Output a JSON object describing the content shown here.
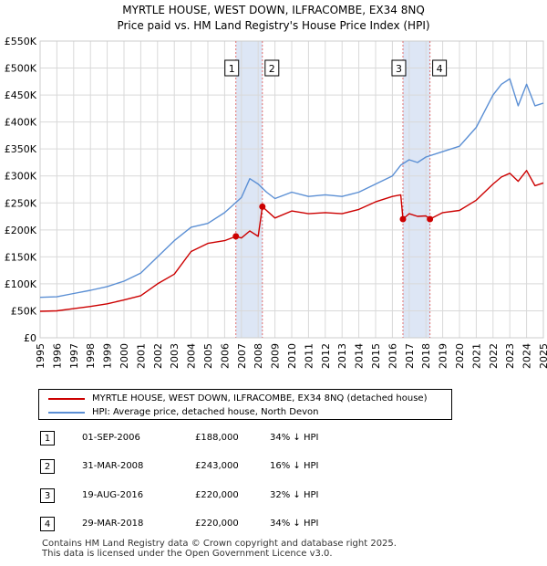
{
  "title_line1": "MYRTLE HOUSE, WEST DOWN, ILFRACOMBE, EX34 8NQ",
  "title_line2": "Price paid vs. HM Land Registry's House Price Index (HPI)",
  "colors": {
    "price_line": "#cc0000",
    "hpi_line": "#5b8fd4",
    "band_fill": "#dde6f5",
    "marker_dash": "#e07070",
    "grid": "#d9d9d9"
  },
  "legend": [
    {
      "label": "MYRTLE HOUSE, WEST DOWN, ILFRACOMBE, EX34 8NQ (detached house)",
      "color": "#cc0000"
    },
    {
      "label": "HPI: Average price, detached house, North Devon",
      "color": "#5b8fd4"
    }
  ],
  "sales": [
    {
      "num": "1",
      "date": "01-SEP-2006",
      "price": "£188,000",
      "hpi": "34% ↓ HPI"
    },
    {
      "num": "2",
      "date": "31-MAR-2008",
      "price": "£243,000",
      "hpi": "16% ↓ HPI"
    },
    {
      "num": "3",
      "date": "19-AUG-2016",
      "price": "£220,000",
      "hpi": "32% ↓ HPI"
    },
    {
      "num": "4",
      "date": "29-MAR-2018",
      "price": "£220,000",
      "hpi": "34% ↓ HPI"
    }
  ],
  "footer_line1": "Contains HM Land Registry data © Crown copyright and database right 2025.",
  "footer_line2": "This data is licensed under the Open Government Licence v3.0.",
  "chart_data": {
    "type": "line",
    "title": "MYRTLE HOUSE, WEST DOWN, ILFRACOMBE, EX34 8NQ — Price paid vs. HM Land Registry's House Price Index (HPI)",
    "xlim": [
      1995,
      2025
    ],
    "ylim": [
      0,
      550000
    ],
    "y_ticks": [
      0,
      50000,
      100000,
      150000,
      200000,
      250000,
      300000,
      350000,
      400000,
      450000,
      500000,
      550000
    ],
    "y_tick_labels": [
      "£0",
      "£50K",
      "£100K",
      "£150K",
      "£200K",
      "£250K",
      "£300K",
      "£350K",
      "£400K",
      "£450K",
      "£500K",
      "£550K"
    ],
    "x_ticks": [
      1995,
      1996,
      1997,
      1998,
      1999,
      2000,
      2001,
      2002,
      2003,
      2004,
      2005,
      2006,
      2007,
      2008,
      2009,
      2010,
      2011,
      2012,
      2013,
      2014,
      2015,
      2016,
      2017,
      2018,
      2019,
      2020,
      2021,
      2022,
      2023,
      2024,
      2025
    ],
    "grid": true,
    "shaded_periods": [
      [
        2006.67,
        2008.25
      ],
      [
        2016.63,
        2018.24
      ]
    ],
    "sale_markers": [
      {
        "label": "1",
        "x": 2006.67,
        "y": 188000
      },
      {
        "label": "2",
        "x": 2008.25,
        "y": 243000
      },
      {
        "label": "3",
        "x": 2016.63,
        "y": 220000
      },
      {
        "label": "4",
        "x": 2018.24,
        "y": 220000
      }
    ],
    "series": [
      {
        "name": "HPI: Average price, detached house, North Devon",
        "x": [
          1995,
          1996,
          1997,
          1998,
          1999,
          2000,
          2001,
          2002,
          2003,
          2004,
          2005,
          2006,
          2007,
          2007.5,
          2008,
          2008.5,
          2009,
          2010,
          2011,
          2012,
          2013,
          2014,
          2015,
          2016,
          2016.5,
          2017,
          2017.5,
          2018,
          2019,
          2020,
          2021,
          2022,
          2022.5,
          2023,
          2023.5,
          2024,
          2024.5,
          2025
        ],
        "values": [
          75000,
          76000,
          82000,
          88000,
          95000,
          105000,
          120000,
          150000,
          180000,
          205000,
          212000,
          232000,
          260000,
          295000,
          285000,
          270000,
          258000,
          270000,
          262000,
          265000,
          262000,
          270000,
          285000,
          300000,
          320000,
          330000,
          325000,
          335000,
          345000,
          355000,
          390000,
          450000,
          470000,
          480000,
          430000,
          470000,
          430000,
          435000
        ]
      },
      {
        "name": "MYRTLE HOUSE, WEST DOWN, ILFRACOMBE, EX34 8NQ (detached house)",
        "x": [
          1995,
          1996,
          1997,
          1998,
          1999,
          2000,
          2001,
          2002,
          2003,
          2004,
          2005,
          2006,
          2006.67,
          2007,
          2007.5,
          2008,
          2008.25,
          2009,
          2010,
          2011,
          2012,
          2013,
          2014,
          2015,
          2016,
          2016.5,
          2016.63,
          2017,
          2017.5,
          2018,
          2018.24,
          2019,
          2020,
          2021,
          2022,
          2022.5,
          2023,
          2023.5,
          2024,
          2024.5,
          2025
        ],
        "values": [
          49000,
          50000,
          54000,
          58000,
          63000,
          70000,
          78000,
          100000,
          118000,
          160000,
          175000,
          180000,
          188000,
          185000,
          198000,
          188000,
          243000,
          222000,
          235000,
          230000,
          232000,
          230000,
          238000,
          252000,
          262000,
          265000,
          220000,
          230000,
          225000,
          226000,
          220000,
          232000,
          236000,
          255000,
          285000,
          298000,
          305000,
          290000,
          310000,
          282000,
          287000
        ]
      }
    ]
  }
}
